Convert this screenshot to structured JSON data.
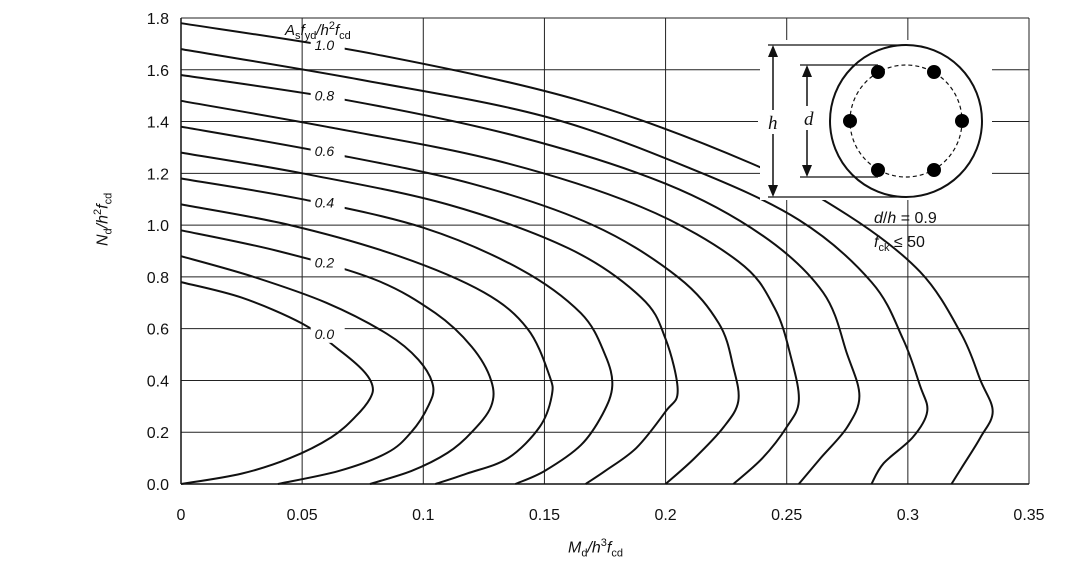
{
  "chart_data": {
    "type": "line",
    "title": "",
    "xlim": [
      0,
      0.35
    ],
    "ylim": [
      0,
      1.8
    ],
    "x_ticks": [
      "0",
      "0.05",
      "0.1",
      "0.15",
      "0.2",
      "0.25",
      "0.3",
      "0.35"
    ],
    "y_ticks": [
      "0.0",
      "0.2",
      "0.4",
      "0.6",
      "0.8",
      "1.0",
      "1.2",
      "1.4",
      "1.6",
      "1.8"
    ],
    "xlabel": {
      "main": "M",
      "sub1": "d",
      "mid": "/h",
      "sup": "3",
      "f": "f",
      "sub2": "cd"
    },
    "ylabel": {
      "main": "N",
      "sub1": "d",
      "mid": "/h",
      "sup": "2",
      "f": "f",
      "sub2": "cd"
    },
    "legend_title": {
      "a": "A",
      "s": "s",
      "f": "f",
      "yd": "yd",
      "h": "/h",
      "two": "2",
      "f2": "f",
      "cd": "cd"
    },
    "grid": true,
    "series": [
      {
        "name": "0.0",
        "points": [
          [
            0,
            0.78
          ],
          [
            0.025,
            0.72
          ],
          [
            0.05,
            0.62
          ],
          [
            0.065,
            0.52
          ],
          [
            0.075,
            0.44
          ],
          [
            0.079,
            0.38
          ],
          [
            0.078,
            0.33
          ],
          [
            0.072,
            0.26
          ],
          [
            0.062,
            0.18
          ],
          [
            0.045,
            0.1
          ],
          [
            0.025,
            0.04
          ],
          [
            0,
            0
          ]
        ]
      },
      {
        "name": "",
        "points": [
          [
            0,
            0.88
          ],
          [
            0.03,
            0.8
          ],
          [
            0.06,
            0.7
          ],
          [
            0.085,
            0.58
          ],
          [
            0.098,
            0.48
          ],
          [
            0.104,
            0.38
          ],
          [
            0.102,
            0.3
          ],
          [
            0.095,
            0.2
          ],
          [
            0.085,
            0.12
          ],
          [
            0.065,
            0.05
          ],
          [
            0.04,
            0
          ]
        ]
      },
      {
        "name": "0.2",
        "points": [
          [
            0,
            0.98
          ],
          [
            0.04,
            0.9
          ],
          [
            0.08,
            0.79
          ],
          [
            0.105,
            0.66
          ],
          [
            0.12,
            0.53
          ],
          [
            0.128,
            0.4
          ],
          [
            0.128,
            0.3
          ],
          [
            0.12,
            0.2
          ],
          [
            0.11,
            0.12
          ],
          [
            0.095,
            0.05
          ],
          [
            0.078,
            0
          ]
        ]
      },
      {
        "name": "",
        "points": [
          [
            0,
            1.08
          ],
          [
            0.045,
            1.0
          ],
          [
            0.09,
            0.88
          ],
          [
            0.125,
            0.74
          ],
          [
            0.143,
            0.6
          ],
          [
            0.152,
            0.42
          ],
          [
            0.153,
            0.34
          ],
          [
            0.148,
            0.22
          ],
          [
            0.135,
            0.1
          ],
          [
            0.118,
            0.04
          ],
          [
            0.105,
            0
          ]
        ]
      },
      {
        "name": "0.4",
        "points": [
          [
            0,
            1.18
          ],
          [
            0.05,
            1.1
          ],
          [
            0.1,
            0.99
          ],
          [
            0.14,
            0.83
          ],
          [
            0.165,
            0.66
          ],
          [
            0.175,
            0.5
          ],
          [
            0.178,
            0.38
          ],
          [
            0.174,
            0.27
          ],
          [
            0.165,
            0.15
          ],
          [
            0.15,
            0.05
          ],
          [
            0.138,
            0
          ]
        ]
      },
      {
        "name": "",
        "points": [
          [
            0,
            1.28
          ],
          [
            0.05,
            1.2
          ],
          [
            0.11,
            1.08
          ],
          [
            0.16,
            0.91
          ],
          [
            0.19,
            0.72
          ],
          [
            0.2,
            0.56
          ],
          [
            0.205,
            0.36
          ],
          [
            0.2,
            0.28
          ],
          [
            0.188,
            0.14
          ],
          [
            0.175,
            0.05
          ],
          [
            0.167,
            0
          ]
        ]
      },
      {
        "name": "0.6",
        "points": [
          [
            0,
            1.38
          ],
          [
            0.06,
            1.28
          ],
          [
            0.12,
            1.16
          ],
          [
            0.17,
            1.0
          ],
          [
            0.205,
            0.8
          ],
          [
            0.222,
            0.62
          ],
          [
            0.228,
            0.45
          ],
          [
            0.23,
            0.32
          ],
          [
            0.224,
            0.22
          ],
          [
            0.212,
            0.1
          ],
          [
            0.2,
            0
          ]
        ]
      },
      {
        "name": "",
        "points": [
          [
            0,
            1.48
          ],
          [
            0.06,
            1.38
          ],
          [
            0.13,
            1.25
          ],
          [
            0.19,
            1.07
          ],
          [
            0.23,
            0.86
          ],
          [
            0.245,
            0.68
          ],
          [
            0.252,
            0.48
          ],
          [
            0.255,
            0.32
          ],
          [
            0.25,
            0.22
          ],
          [
            0.24,
            0.1
          ],
          [
            0.228,
            0
          ]
        ]
      },
      {
        "name": "0.8",
        "points": [
          [
            0,
            1.58
          ],
          [
            0.07,
            1.48
          ],
          [
            0.14,
            1.34
          ],
          [
            0.2,
            1.16
          ],
          [
            0.24,
            0.96
          ],
          [
            0.265,
            0.74
          ],
          [
            0.275,
            0.5
          ],
          [
            0.28,
            0.34
          ],
          [
            0.275,
            0.22
          ],
          [
            0.264,
            0.1
          ],
          [
            0.255,
            0
          ]
        ]
      },
      {
        "name": "",
        "points": [
          [
            0,
            1.68
          ],
          [
            0.075,
            1.56
          ],
          [
            0.15,
            1.42
          ],
          [
            0.21,
            1.22
          ],
          [
            0.255,
            1.02
          ],
          [
            0.285,
            0.78
          ],
          [
            0.298,
            0.56
          ],
          [
            0.305,
            0.38
          ],
          [
            0.308,
            0.28
          ],
          [
            0.302,
            0.18
          ],
          [
            0.29,
            0.08
          ],
          [
            0.285,
            0
          ]
        ]
      },
      {
        "name": "1.0",
        "points": [
          [
            0,
            1.78
          ],
          [
            0.08,
            1.66
          ],
          [
            0.165,
            1.48
          ],
          [
            0.235,
            1.24
          ],
          [
            0.275,
            1.04
          ],
          [
            0.305,
            0.82
          ],
          [
            0.322,
            0.58
          ],
          [
            0.33,
            0.4
          ],
          [
            0.335,
            0.28
          ],
          [
            0.33,
            0.18
          ],
          [
            0.322,
            0.06
          ],
          [
            0.318,
            0
          ]
        ]
      }
    ]
  },
  "section_diagram": {
    "h_label": "h",
    "d_label": "d"
  },
  "annotations": {
    "dh": {
      "d": "d",
      "h": "h",
      "eq": " = 0.9"
    },
    "fck": {
      "f": "f",
      "ck": "ck",
      "le": " ≤ 50"
    }
  }
}
